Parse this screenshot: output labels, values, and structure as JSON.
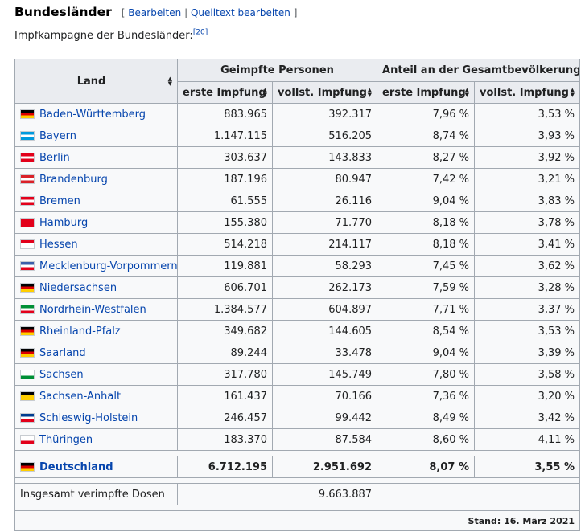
{
  "section": {
    "title": "Bundesländer",
    "edit_open": "[",
    "edit_link": "Bearbeiten",
    "edit_sep": "|",
    "source_link": "Quelltext bearbeiten",
    "edit_close": "]"
  },
  "intro": {
    "text": "Impfkampagne der Bundesländer:",
    "ref": "[20]"
  },
  "table": {
    "headers": {
      "land": "Land",
      "group_people": "Geimpfte Personen",
      "group_share": "Anteil an der Gesamtbevölkerung",
      "first": "erste Impfung",
      "full": "vollst. Impfung",
      "first_share": "erste Impfung",
      "full_share": "vollst. Impfung"
    },
    "rows": [
      {
        "land": "Baden-Württemberg",
        "first": "883.965",
        "full": "392.317",
        "first_pct": "7,96 %",
        "full_pct": "3,53 %",
        "flag": [
          "#000000",
          "#dd0000",
          "#ffce00"
        ]
      },
      {
        "land": "Bayern",
        "first": "1.147.115",
        "full": "516.205",
        "first_pct": "8,74 %",
        "full_pct": "3,93 %",
        "flag": [
          "#0099dd",
          "#ffffff",
          "#0099dd"
        ]
      },
      {
        "land": "Berlin",
        "first": "303.637",
        "full": "143.833",
        "first_pct": "8,27 %",
        "full_pct": "3,92 %",
        "flag": [
          "#e2001a",
          "#ffffff",
          "#e2001a"
        ]
      },
      {
        "land": "Brandenburg",
        "first": "187.196",
        "full": "80.947",
        "first_pct": "7,42 %",
        "full_pct": "3,21 %",
        "flag": [
          "#da2128",
          "#ffffff",
          "#da2128"
        ]
      },
      {
        "land": "Bremen",
        "first": "61.555",
        "full": "26.116",
        "first_pct": "9,04 %",
        "full_pct": "3,83 %",
        "flag": [
          "#e2001a",
          "#ffffff",
          "#e2001a"
        ]
      },
      {
        "land": "Hamburg",
        "first": "155.380",
        "full": "71.770",
        "first_pct": "8,18 %",
        "full_pct": "3,78 %",
        "flag": [
          "#e2001a",
          "#e2001a",
          "#e2001a"
        ]
      },
      {
        "land": "Hessen",
        "first": "514.218",
        "full": "214.117",
        "first_pct": "8,18 %",
        "full_pct": "3,41 %",
        "flag": [
          "#e2001a",
          "#ffffff",
          "#ffffff"
        ]
      },
      {
        "land": "Mecklenburg-Vorpommern",
        "first": "119.881",
        "full": "58.293",
        "first_pct": "7,45 %",
        "full_pct": "3,62 %",
        "flag": [
          "#3a5ea8",
          "#ffffff",
          "#e2001a"
        ]
      },
      {
        "land": "Niedersachsen",
        "first": "606.701",
        "full": "262.173",
        "first_pct": "7,59 %",
        "full_pct": "3,28 %",
        "flag": [
          "#000000",
          "#dd0000",
          "#ffce00"
        ]
      },
      {
        "land": "Nordrhein-Westfalen",
        "first": "1.384.577",
        "full": "604.897",
        "first_pct": "7,71 %",
        "full_pct": "3,37 %",
        "flag": [
          "#009036",
          "#ffffff",
          "#e2001a"
        ]
      },
      {
        "land": "Rheinland-Pfalz",
        "first": "349.682",
        "full": "144.605",
        "first_pct": "8,54 %",
        "full_pct": "3,53 %",
        "flag": [
          "#000000",
          "#dd0000",
          "#ffce00"
        ]
      },
      {
        "land": "Saarland",
        "first": "89.244",
        "full": "33.478",
        "first_pct": "9,04 %",
        "full_pct": "3,39 %",
        "flag": [
          "#000000",
          "#dd0000",
          "#ffce00"
        ]
      },
      {
        "land": "Sachsen",
        "first": "317.780",
        "full": "145.749",
        "first_pct": "7,80 %",
        "full_pct": "3,58 %",
        "flag": [
          "#ffffff",
          "#ffffff",
          "#009036"
        ]
      },
      {
        "land": "Sachsen-Anhalt",
        "first": "161.437",
        "full": "70.166",
        "first_pct": "7,36 %",
        "full_pct": "3,20 %",
        "flag": [
          "#000000",
          "#ffce00",
          "#ffce00"
        ]
      },
      {
        "land": "Schleswig-Holstein",
        "first": "246.457",
        "full": "99.442",
        "first_pct": "8,49 %",
        "full_pct": "3,42 %",
        "flag": [
          "#003c8f",
          "#ffffff",
          "#e2001a"
        ]
      },
      {
        "land": "Thüringen",
        "first": "183.370",
        "full": "87.584",
        "first_pct": "8,60 %",
        "full_pct": "4,11 %",
        "flag": [
          "#ffffff",
          "#ffffff",
          "#e2001a"
        ]
      }
    ],
    "total": {
      "land": "Deutschland",
      "first": "6.712.195",
      "full": "2.951.692",
      "first_pct": "8,07 %",
      "full_pct": "3,55 %",
      "flag": [
        "#000000",
        "#dd0000",
        "#ffce00"
      ]
    },
    "doses": {
      "label": "Insgesamt verimpfte Dosen",
      "value": "9.663.887"
    },
    "stand": "Stand: 16. März 2021"
  }
}
